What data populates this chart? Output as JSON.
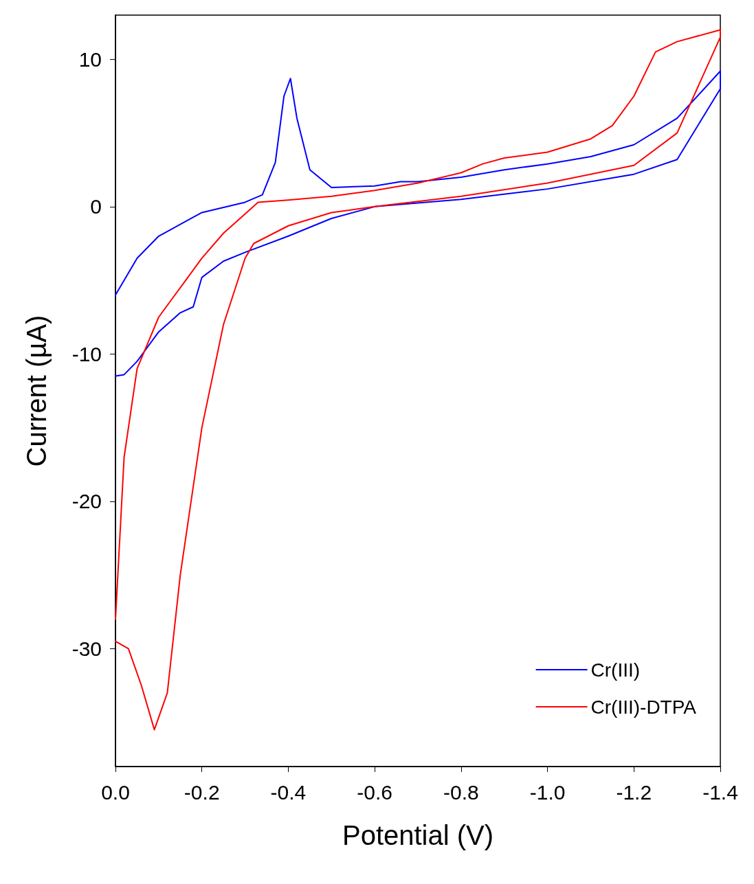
{
  "chart_data": {
    "type": "line",
    "xlabel": "Potential (V)",
    "ylabel": "Current (µA)",
    "xlim": [
      0,
      -1.4
    ],
    "ylim": [
      -38,
      13
    ],
    "xticks": [
      {
        "value": 0,
        "label": "0.0"
      },
      {
        "value": -0.2,
        "label": "-0.2"
      },
      {
        "value": -0.4,
        "label": "-0.4"
      },
      {
        "value": -0.6,
        "label": "-0.6"
      },
      {
        "value": -0.8,
        "label": "-0.8"
      },
      {
        "value": -1.0,
        "label": "-1.0"
      },
      {
        "value": -1.2,
        "label": "-1.2"
      },
      {
        "value": -1.4,
        "label": "-1.4"
      }
    ],
    "yticks": [
      -30,
      -20,
      -10,
      0,
      10
    ],
    "grid": false,
    "legend": "bottom right",
    "marker": "none",
    "line_style": "solid",
    "series": [
      {
        "name": "Cr(III)",
        "color": "#0000ff",
        "x": [
          0,
          -0.02,
          -0.05,
          -0.1,
          -0.15,
          -0.18,
          -0.2,
          -0.25,
          -0.3,
          -0.4,
          -0.5,
          -0.6,
          -0.8,
          -1.0,
          -1.2,
          -1.3,
          -1.4,
          -1.4,
          -1.3,
          -1.2,
          -1.1,
          -1.0,
          -0.9,
          -0.8,
          -0.7,
          -0.66,
          -0.6,
          -0.5,
          -0.45,
          -0.42,
          -0.405,
          -0.39,
          -0.37,
          -0.34,
          -0.3,
          -0.2,
          -0.1,
          -0.05,
          0
        ],
        "values": [
          -11.5,
          -11.4,
          -10.5,
          -8.5,
          -7.2,
          -6.8,
          -4.8,
          -3.7,
          -3.1,
          -2.0,
          -0.8,
          0,
          0.5,
          1.2,
          2.2,
          3.2,
          8,
          9.2,
          6.0,
          4.2,
          3.4,
          2.9,
          2.5,
          2.0,
          1.7,
          1.7,
          1.4,
          1.3,
          2.5,
          6,
          8.7,
          7.5,
          3,
          0.8,
          0.3,
          -0.4,
          -2,
          -3.5,
          -6
        ]
      },
      {
        "name": "Cr(III)-DTPA",
        "color": "#ff0000",
        "x": [
          0,
          -0.03,
          -0.06,
          -0.09,
          -0.12,
          -0.15,
          -0.2,
          -0.25,
          -0.3,
          -0.32,
          -0.4,
          -0.5,
          -0.6,
          -0.8,
          -1.0,
          -1.2,
          -1.3,
          -1.4,
          -1.4,
          -1.3,
          -1.25,
          -1.2,
          -1.15,
          -1.1,
          -1.0,
          -0.9,
          -0.85,
          -0.8,
          -0.7,
          -0.6,
          -0.5,
          -0.4,
          -0.33,
          -0.3,
          -0.25,
          -0.2,
          -0.15,
          -0.1,
          -0.05,
          -0.02,
          0
        ],
        "values": [
          -29.5,
          -30,
          -32.5,
          -35.5,
          -33,
          -25,
          -15,
          -8,
          -3.5,
          -2.5,
          -1.3,
          -0.4,
          0,
          0.7,
          1.6,
          2.8,
          5,
          11.5,
          12,
          11.2,
          10.5,
          7.5,
          5.5,
          4.6,
          3.7,
          3.3,
          2.9,
          2.3,
          1.6,
          1.1,
          0.7,
          0.45,
          0.3,
          -0.5,
          -1.8,
          -3.5,
          -5.5,
          -7.5,
          -11,
          -17,
          -28
        ]
      }
    ]
  }
}
